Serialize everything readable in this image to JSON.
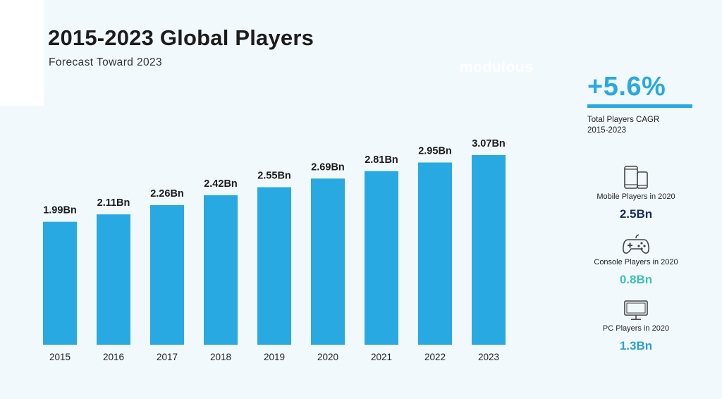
{
  "header": {
    "title": "2015-2023 Global Players",
    "subtitle": "Forecast Toward 2023",
    "logo_text": "modulous"
  },
  "summary": {
    "cagr_value": "+5.6%",
    "cagr_label_line1": "Total Players CAGR",
    "cagr_label_line2": "2015-2023",
    "stats": [
      {
        "label": "Mobile Players in 2020",
        "value": "2.5Bn",
        "icon": "smartphones-icon",
        "color": "#1b2a63"
      },
      {
        "label": "Console Players in 2020",
        "value": "0.8Bn",
        "icon": "gamepad-icon",
        "color": "#3cc3b0"
      },
      {
        "label": "PC Players in 2020",
        "value": "1.3Bn",
        "icon": "monitor-icon",
        "color": "#2aa0d8"
      }
    ]
  },
  "colors": {
    "bar": "#29a9e1",
    "background": "#f2f9fc"
  },
  "chart_data": {
    "type": "bar",
    "title": "2015-2023 Global Players",
    "subtitle": "Forecast Toward 2023",
    "categories": [
      "2015",
      "2016",
      "2017",
      "2018",
      "2019",
      "2020",
      "2021",
      "2022",
      "2023"
    ],
    "values": [
      1.99,
      2.11,
      2.26,
      2.42,
      2.55,
      2.69,
      2.81,
      2.95,
      3.07
    ],
    "value_labels": [
      "1.99Bn",
      "2.11Bn",
      "2.26Bn",
      "2.42Bn",
      "2.55Bn",
      "2.69Bn",
      "2.81Bn",
      "2.95Bn",
      "3.07Bn"
    ],
    "unit": "Bn",
    "xlabel": "",
    "ylabel": "",
    "ylim": [
      0,
      3.07
    ],
    "grid": false,
    "legend": "none"
  }
}
